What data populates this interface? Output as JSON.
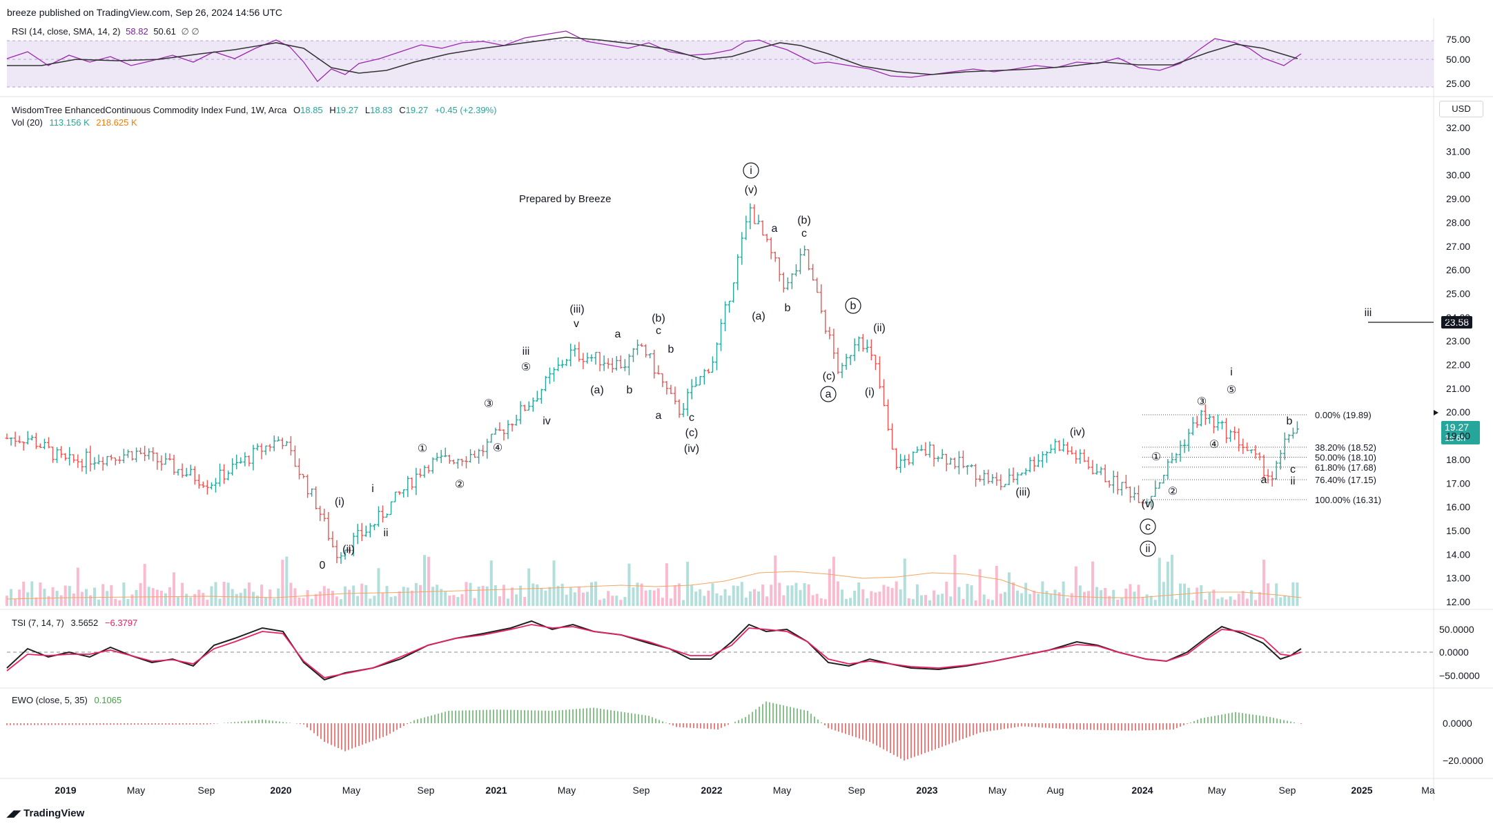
{
  "header": {
    "publisher": "breeze published on TradingView.com, Sep 26, 2024 14:56 UTC",
    "footer_brand": "TradingView"
  },
  "rsi": {
    "label": "RSI (14, close, SMA, 14, 2)",
    "value1": "58.82",
    "value2": "50.61",
    "extra": "∅ ∅",
    "ticks": [
      "75.00",
      "50.00",
      "25.00"
    ]
  },
  "symbol": {
    "name": "WisdomTree EnhancedContinuous Commodity Index Fund, 1W, Arca",
    "o_label": "O",
    "o": "18.85",
    "h_label": "H",
    "h": "19.27",
    "l_label": "L",
    "l": "18.83",
    "c_label": "C",
    "c": "19.27",
    "change": "+0.45 (+2.39%)",
    "vol_label": "Vol (20)",
    "vol1": "113.156 K",
    "vol2": "218.625 K",
    "currency": "USD"
  },
  "price_axis": [
    "32.00",
    "31.00",
    "30.00",
    "29.00",
    "28.00",
    "27.00",
    "26.00",
    "25.00",
    "24.00",
    "23.00",
    "22.00",
    "21.00",
    "20.00",
    "19.00",
    "18.00",
    "17.00",
    "16.00",
    "15.00",
    "14.00",
    "13.00",
    "12.00"
  ],
  "price_tags": {
    "last": "19.27",
    "countdown": "1d 6h",
    "iii_level": "23.58"
  },
  "annotation": "Prepared by Breeze",
  "fib_levels": [
    {
      "label": "0.00% (19.89)",
      "price": 19.89
    },
    {
      "label": "38.20% (18.52)",
      "price": 18.52
    },
    {
      "label": "50.00% (18.10)",
      "price": 18.1
    },
    {
      "label": "61.80% (17.68)",
      "price": 17.68
    },
    {
      "label": "76.40% (17.15)",
      "price": 17.15
    },
    {
      "label": "100.00% (16.31)",
      "price": 16.31
    }
  ],
  "waves": [
    {
      "t": "0",
      "x": 467,
      "y": 824
    },
    {
      "t": "(i)",
      "x": 492,
      "y": 732
    },
    {
      "t": "(ii)",
      "x": 505,
      "y": 801
    },
    {
      "t": "i",
      "x": 540,
      "y": 713
    },
    {
      "t": "ii",
      "x": 559,
      "y": 777
    },
    {
      "t": "①",
      "x": 612,
      "y": 655
    },
    {
      "t": "②",
      "x": 666,
      "y": 707
    },
    {
      "t": "③",
      "x": 708,
      "y": 590
    },
    {
      "t": "④",
      "x": 721,
      "y": 654
    },
    {
      "t": "iii",
      "x": 762,
      "y": 514
    },
    {
      "t": "⑤",
      "x": 762,
      "y": 537
    },
    {
      "t": "iv",
      "x": 792,
      "y": 615
    },
    {
      "t": "(iii)",
      "x": 836,
      "y": 453
    },
    {
      "t": "v",
      "x": 835,
      "y": 474
    },
    {
      "t": "(a)",
      "x": 865,
      "y": 570
    },
    {
      "t": "a",
      "x": 895,
      "y": 489
    },
    {
      "t": "b",
      "x": 912,
      "y": 570
    },
    {
      "t": "(b)",
      "x": 954,
      "y": 466
    },
    {
      "t": "c",
      "x": 954,
      "y": 484
    },
    {
      "t": "b",
      "x": 972,
      "y": 511
    },
    {
      "t": "a",
      "x": 954,
      "y": 607
    },
    {
      "t": "c",
      "x": 1002,
      "y": 610
    },
    {
      "t": "(c)",
      "x": 1002,
      "y": 632
    },
    {
      "t": "(iv)",
      "x": 1002,
      "y": 655
    },
    {
      "t": "(v)",
      "x": 1088,
      "y": 280
    },
    {
      "t": "(a)",
      "x": 1099,
      "y": 463
    },
    {
      "t": "a",
      "x": 1122,
      "y": 336
    },
    {
      "t": "b",
      "x": 1141,
      "y": 451
    },
    {
      "t": "(b)",
      "x": 1165,
      "y": 324
    },
    {
      "t": "c",
      "x": 1165,
      "y": 343
    },
    {
      "t": "(c)",
      "x": 1201,
      "y": 550
    },
    {
      "t": "(ii)",
      "x": 1274,
      "y": 480
    },
    {
      "t": "(i)",
      "x": 1260,
      "y": 573
    },
    {
      "t": "(iii)",
      "x": 1482,
      "y": 718
    },
    {
      "t": "(iv)",
      "x": 1561,
      "y": 631
    },
    {
      "t": "(v)",
      "x": 1663,
      "y": 735
    },
    {
      "t": "①",
      "x": 1675,
      "y": 667
    },
    {
      "t": "②",
      "x": 1699,
      "y": 717
    },
    {
      "t": "③",
      "x": 1741,
      "y": 587
    },
    {
      "t": "④",
      "x": 1759,
      "y": 649
    },
    {
      "t": "i",
      "x": 1784,
      "y": 544
    },
    {
      "t": "⑤",
      "x": 1784,
      "y": 570
    },
    {
      "t": "a",
      "x": 1831,
      "y": 700
    },
    {
      "t": "b",
      "x": 1868,
      "y": 615
    },
    {
      "t": "c",
      "x": 1873,
      "y": 685
    },
    {
      "t": "ii",
      "x": 1873,
      "y": 702
    },
    {
      "t": "iii",
      "x": 1982,
      "y": 458
    }
  ],
  "circled_waves": [
    {
      "t": "i",
      "x": 1088,
      "y": 252
    },
    {
      "t": "b",
      "x": 1236,
      "y": 448
    },
    {
      "t": "a",
      "x": 1200,
      "y": 576
    },
    {
      "t": "c",
      "x": 1663,
      "y": 768
    },
    {
      "t": "ii",
      "x": 1663,
      "y": 800
    }
  ],
  "tsi": {
    "label": "TSI (7, 14, 7)",
    "v1": "3.5652",
    "v2": "−6.3797",
    "ticks": [
      "50.0000",
      "0.0000",
      "−50.0000"
    ]
  },
  "ewo": {
    "label": "EWO (close, 5, 35)",
    "v": "0.1065",
    "ticks": [
      "0.0000",
      "−20.0000"
    ]
  },
  "time_axis": [
    {
      "t": "2019",
      "x": 95,
      "bold": true
    },
    {
      "t": "May",
      "x": 197
    },
    {
      "t": "Sep",
      "x": 299
    },
    {
      "t": "2020",
      "x": 407,
      "bold": true
    },
    {
      "t": "May",
      "x": 509
    },
    {
      "t": "Sep",
      "x": 617
    },
    {
      "t": "2021",
      "x": 719,
      "bold": true
    },
    {
      "t": "May",
      "x": 821
    },
    {
      "t": "Sep",
      "x": 929
    },
    {
      "t": "2022",
      "x": 1031,
      "bold": true
    },
    {
      "t": "May",
      "x": 1133
    },
    {
      "t": "Sep",
      "x": 1241
    },
    {
      "t": "2023",
      "x": 1343,
      "bold": true
    },
    {
      "t": "May",
      "x": 1445
    },
    {
      "t": "Aug",
      "x": 1529
    },
    {
      "t": "2024",
      "x": 1655,
      "bold": true
    },
    {
      "t": "May",
      "x": 1763
    },
    {
      "t": "Sep",
      "x": 1865
    },
    {
      "t": "2025",
      "x": 1973,
      "bold": true
    },
    {
      "t": "Ma",
      "x": 2069
    }
  ],
  "colors": {
    "up": "#26a69a",
    "down": "#ef5350",
    "vol_up": "#b2dfdb",
    "vol_down": "#f8bbd0",
    "rsi": "#9c27b0",
    "rsi_band": "#ede7f6",
    "tsi": "#1f1f1f",
    "tsi_sig": "#e91e63",
    "ewo_up": "#43a047",
    "ewo_down": "#e53935",
    "vol_ma": "#f4a460",
    "accent": "#26a69a"
  },
  "chart_data": {
    "type": "line",
    "title": "WisdomTree EnhancedContinuous Commodity Index Fund, 1W, Arca",
    "xlabel": "",
    "ylabel": "",
    "ylim": [
      12,
      32
    ],
    "series": [
      {
        "x": [
          "2018-11",
          "2019-01",
          "2019-05",
          "2019-09",
          "2019-12",
          "2020-01",
          "2020-03",
          "2020-04",
          "2020-06",
          "2020-09",
          "2020-12",
          "2021-03",
          "2021-05",
          "2021-08",
          "2021-09",
          "2021-11",
          "2022-01",
          "2022-03",
          "2022-05",
          "2022-06",
          "2022-08",
          "2022-09",
          "2022-10",
          "2022-11",
          "2023-01",
          "2023-05",
          "2023-08",
          "2023-11",
          "2024-01",
          "2024-04",
          "2024-06",
          "2024-08",
          "2024-09"
        ],
        "values": [
          18.9,
          17.9,
          18.3,
          17.0,
          18.5,
          18.9,
          16.0,
          14.0,
          15.2,
          17.8,
          18.3,
          20.6,
          22.5,
          22.0,
          22.8,
          20.0,
          22.3,
          28.6,
          25.2,
          26.7,
          21.5,
          23.4,
          21.8,
          17.8,
          18.4,
          16.9,
          18.7,
          17.1,
          16.3,
          19.89,
          18.9,
          17.2,
          19.27
        ]
      }
    ]
  }
}
